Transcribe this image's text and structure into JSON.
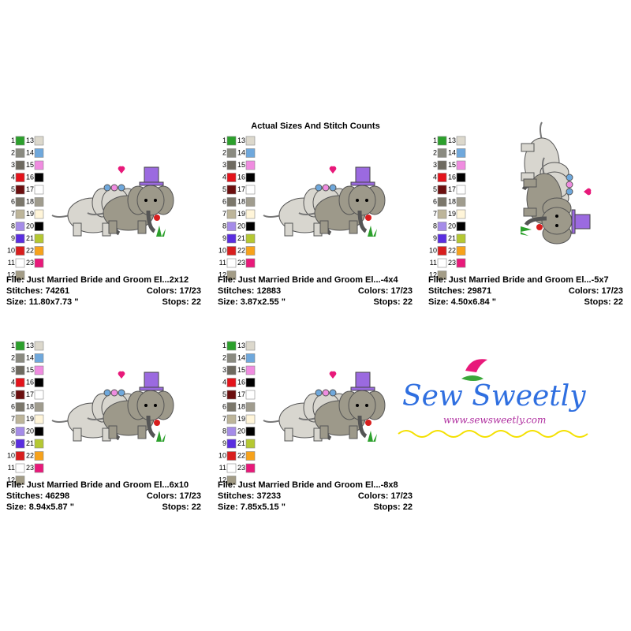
{
  "title": "Actual Sizes And Stitch Counts",
  "palette": [
    {
      "number": 1,
      "color": "#2ca02c"
    },
    {
      "number": 2,
      "color": "#8a8a80"
    },
    {
      "number": 3,
      "color": "#6e6a60"
    },
    {
      "number": 4,
      "color": "#e3131b"
    },
    {
      "number": 5,
      "color": "#6b0f0f"
    },
    {
      "number": 6,
      "color": "#7b776b"
    },
    {
      "number": 7,
      "color": "#bdb59a"
    },
    {
      "number": 8,
      "color": "#a58ce8"
    },
    {
      "number": 9,
      "color": "#5a2ee0"
    },
    {
      "number": 10,
      "color": "#d81e1e"
    },
    {
      "number": 11,
      "color": "#ffffff"
    },
    {
      "number": 12,
      "color": "#a39c86"
    },
    {
      "number": 13,
      "color": "#dcd8cc"
    },
    {
      "number": 14,
      "color": "#6fa8dc"
    },
    {
      "number": 15,
      "color": "#f08ce0"
    },
    {
      "number": 16,
      "color": "#000000"
    },
    {
      "number": 17,
      "color": "#ffffff"
    },
    {
      "number": 18,
      "color": "#a09c8e"
    },
    {
      "number": 19,
      "color": "#fff5d9"
    },
    {
      "number": 20,
      "color": "#000000"
    },
    {
      "number": 21,
      "color": "#b5c832"
    },
    {
      "number": 22,
      "color": "#f7a21b"
    },
    {
      "number": 23,
      "color": "#e8197a"
    }
  ],
  "designs": [
    {
      "file": "File: Just Married Bride and Groom El...2x12",
      "stitches": "Stitches: 74261",
      "colors": "Colors: 17/23",
      "size": "Size: 11.80x7.73 \"",
      "stops": "Stops: 22"
    },
    {
      "file": "File: Just Married Bride and Groom El...-4x4",
      "stitches": "Stitches: 12883",
      "colors": "Colors: 17/23",
      "size": "Size: 3.87x2.55 \"",
      "stops": "Stops: 22"
    },
    {
      "file": "File: Just Married Bride and Groom El...-5x7",
      "stitches": "Stitches: 29871",
      "colors": "Colors: 17/23",
      "size": "Size: 4.50x6.84 \"",
      "stops": "Stops: 22"
    },
    {
      "file": "File: Just Married Bride and Groom El...6x10",
      "stitches": "Stitches: 46298",
      "colors": "Colors: 17/23",
      "size": "Size: 8.94x5.87 \"",
      "stops": "Stops: 22"
    },
    {
      "file": "File: Just Married Bride and Groom El...-8x8",
      "stitches": "Stitches: 37233",
      "colors": "Colors: 17/23",
      "size": "Size: 7.85x5.15 \"",
      "stops": "Stops: 22"
    }
  ],
  "logo": {
    "name": "Sew Sweetly",
    "url": "www.sewsweetly.com"
  }
}
